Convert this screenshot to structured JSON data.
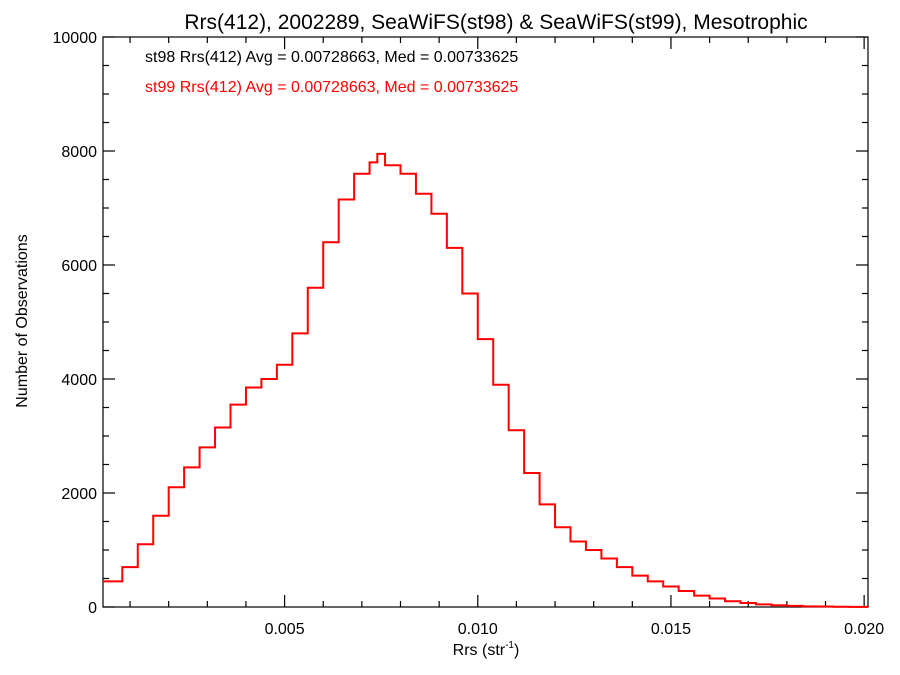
{
  "chart_data": {
    "type": "line",
    "title": "Rrs(412), 2002289, SeaWiFS(st98) & SeaWiFS(st99), Mesotrophic",
    "xlabel": "Rrs (str",
    "xlabel_sup": "-1",
    "xlabel_close": ")",
    "ylabel": "Number of Observations",
    "xlim": [
      0.0003,
      0.0201
    ],
    "ylim": [
      0,
      10000
    ],
    "xticks": [
      {
        "value": 0.005,
        "label": "0.005"
      },
      {
        "value": 0.01,
        "label": "0.010"
      },
      {
        "value": 0.015,
        "label": "0.015"
      },
      {
        "value": 0.02,
        "label": "0.020"
      }
    ],
    "yticks": [
      {
        "value": 0,
        "label": "0"
      },
      {
        "value": 2000,
        "label": "2000"
      },
      {
        "value": 4000,
        "label": "4000"
      },
      {
        "value": 6000,
        "label": "6000"
      },
      {
        "value": 8000,
        "label": "8000"
      },
      {
        "value": 10000,
        "label": "10000"
      }
    ],
    "annotations": [
      {
        "text": "st98 Rrs(412) Avg = 0.00728663, Med = 0.00733625",
        "color": "#000000"
      },
      {
        "text": "st99 Rrs(412) Avg = 0.00728663, Med = 0.00733625",
        "color": "#ff0000"
      }
    ],
    "series": [
      {
        "color": "#ff0000",
        "x": [
          0.0003,
          0.0008,
          0.0012,
          0.0016,
          0.002,
          0.0024,
          0.0028,
          0.0032,
          0.0036,
          0.004,
          0.0044,
          0.0048,
          0.0052,
          0.0056,
          0.006,
          0.0064,
          0.0068,
          0.0072,
          0.0074,
          0.0076,
          0.008,
          0.0084,
          0.0088,
          0.0092,
          0.0096,
          0.01,
          0.0104,
          0.0108,
          0.0112,
          0.0116,
          0.012,
          0.0124,
          0.0128,
          0.0132,
          0.0136,
          0.014,
          0.0144,
          0.0148,
          0.0152,
          0.0156,
          0.016,
          0.0164,
          0.0168,
          0.0172,
          0.0176,
          0.018,
          0.0184,
          0.0188,
          0.0192,
          0.0196,
          0.0201
        ],
        "y": [
          450,
          700,
          1100,
          1600,
          2100,
          2450,
          2800,
          3150,
          3550,
          3850,
          4000,
          4250,
          4800,
          5600,
          6400,
          7150,
          7600,
          7800,
          7950,
          7750,
          7600,
          7250,
          6900,
          6300,
          5500,
          4700,
          3900,
          3100,
          2350,
          1800,
          1400,
          1150,
          1000,
          850,
          700,
          550,
          450,
          360,
          280,
          200,
          150,
          100,
          70,
          45,
          30,
          20,
          12,
          8,
          5,
          3,
          2
        ]
      }
    ]
  }
}
